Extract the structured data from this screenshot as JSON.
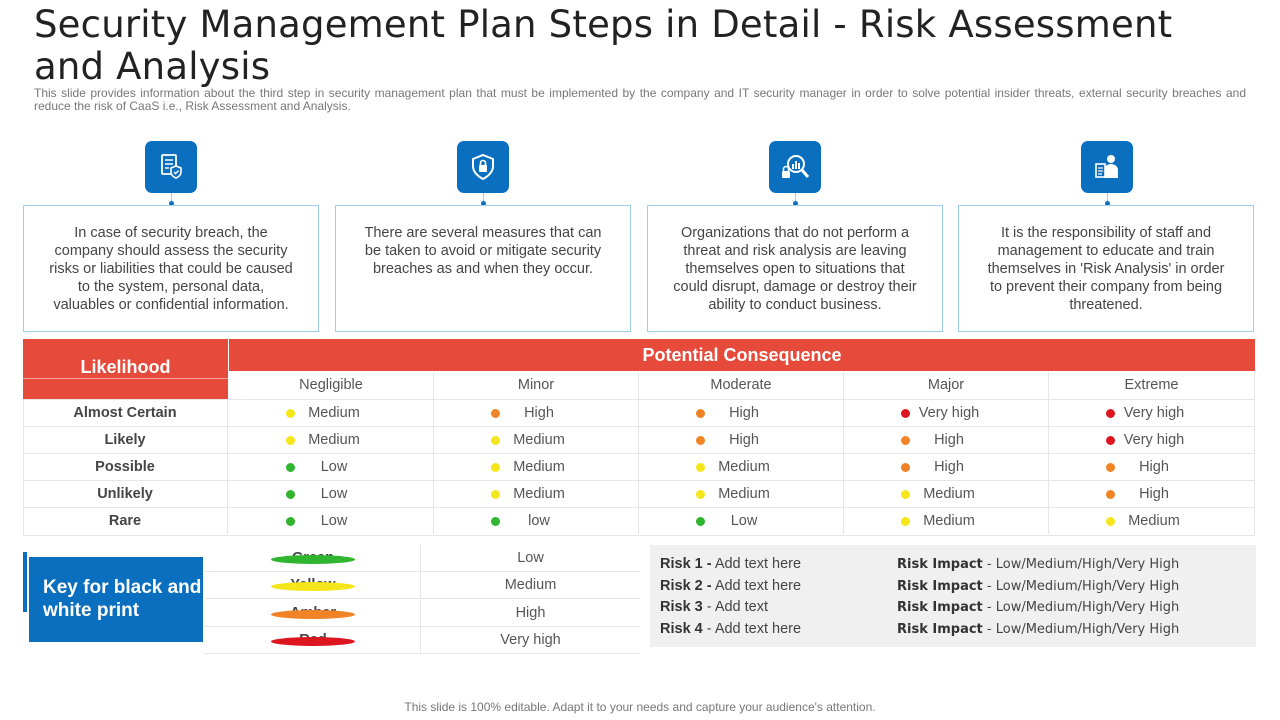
{
  "title": "Security Management Plan Steps in Detail - Risk Assessment and Analysis",
  "subtitle": "This slide provides information about the third step in security management plan that must be implemented by the company and IT security manager in order to solve potential insider threats, external security breaches and reduce the risk of CaaS i.e., Risk Assessment and Analysis.",
  "cards": [
    {
      "icon": "document-shield-icon",
      "text": "In case of security breach, the company should assess the security risks or liabilities that could be caused to the system, personal data, valuables or confidential information."
    },
    {
      "icon": "shield-lock-icon",
      "text": "There are several measures that can be taken to avoid or mitigate security breaches as and when they occur."
    },
    {
      "icon": "risk-analysis-icon",
      "text": "Organizations that do not perform a threat and risk analysis are leaving themselves open to situations that could disrupt, damage or destroy their ability to conduct business."
    },
    {
      "icon": "staff-training-icon",
      "text": "It is the responsibility of staff and management to educate and train themselves in 'Risk Analysis' in order to prevent their company from being threatened."
    }
  ],
  "risk_table": {
    "likelihood_header": "Likelihood",
    "consequence_header": "Potential Consequence",
    "columns": [
      "Negligible",
      "Minor",
      "Moderate",
      "Major",
      "Extreme"
    ],
    "rows": [
      {
        "label": "Almost Certain",
        "cells": [
          {
            "text": "Medium",
            "color": "#f5e51b"
          },
          {
            "text": "High",
            "color": "#ef8325"
          },
          {
            "text": "High",
            "color": "#ef8325"
          },
          {
            "text": "Very high",
            "color": "#dd1520"
          },
          {
            "text": "Very high",
            "color": "#dd1520"
          }
        ]
      },
      {
        "label": "Likely",
        "cells": [
          {
            "text": "Medium",
            "color": "#f5e51b"
          },
          {
            "text": "Medium",
            "color": "#f5e51b"
          },
          {
            "text": "High",
            "color": "#ef8325"
          },
          {
            "text": "High",
            "color": "#ef8325"
          },
          {
            "text": "Very high",
            "color": "#dd1520"
          }
        ]
      },
      {
        "label": "Possible",
        "cells": [
          {
            "text": "Low",
            "color": "#2fb52f"
          },
          {
            "text": "Medium",
            "color": "#f5e51b"
          },
          {
            "text": "Medium",
            "color": "#f5e51b"
          },
          {
            "text": "High",
            "color": "#ef8325"
          },
          {
            "text": "High",
            "color": "#ef8325"
          }
        ]
      },
      {
        "label": "Unlikely",
        "cells": [
          {
            "text": "Low",
            "color": "#2fb52f"
          },
          {
            "text": "Medium",
            "color": "#f5e51b"
          },
          {
            "text": "Medium",
            "color": "#f5e51b"
          },
          {
            "text": "Medium",
            "color": "#f5e51b"
          },
          {
            "text": "High",
            "color": "#ef8325"
          }
        ]
      },
      {
        "label": "Rare",
        "cells": [
          {
            "text": "Low",
            "color": "#2fb52f"
          },
          {
            "text": "low",
            "color": "#2fb52f"
          },
          {
            "text": "Low",
            "color": "#2fb52f"
          },
          {
            "text": "Medium",
            "color": "#f5e51b"
          },
          {
            "text": "Medium",
            "color": "#f5e51b"
          }
        ]
      }
    ]
  },
  "key": {
    "title": "Key for black and white print",
    "items": [
      {
        "name": "Green",
        "value": "Low",
        "color": "#2fb52f"
      },
      {
        "name": "Yellow",
        "value": "Medium",
        "color": "#f5e51b"
      },
      {
        "name": "Amber",
        "value": "High",
        "color": "#ef8325"
      },
      {
        "name": "Red",
        "value": "Very high",
        "color": "#dd1520"
      }
    ]
  },
  "risks": [
    {
      "label": "Risk 1 -",
      "text": " Add text here",
      "impact_label": "Risk Impact",
      "impact_text": " - Low/Medium/High/Very High"
    },
    {
      "label": "Risk 2 -",
      "text": " Add text here",
      "impact_label": "Risk Impact",
      "impact_text": " - Low/Medium/High/Very High"
    },
    {
      "label": "Risk 3",
      "text": " - Add text",
      "impact_label": "Risk Impact",
      "impact_text": " - Low/Medium/High/Very High"
    },
    {
      "label": "Risk 4",
      "text": " - Add text here",
      "impact_label": "Risk Impact",
      "impact_text": " - Low/Medium/High/Very High"
    }
  ],
  "footer": "This slide is 100% editable. Adapt it to your needs and capture your audience's attention."
}
